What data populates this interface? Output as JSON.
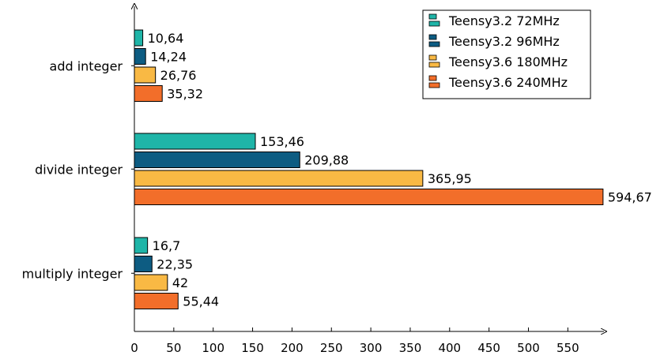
{
  "chart_data": {
    "type": "bar",
    "orientation": "horizontal",
    "categories": [
      "add integer",
      "divide integer",
      "multiply integer"
    ],
    "series": [
      {
        "name": "Teensy3.2 72MHz",
        "color": "#1fb5a8",
        "values": [
          10.64,
          153.46,
          16.7
        ],
        "labels": [
          "10,64",
          "153,46",
          "16,7"
        ]
      },
      {
        "name": "Teensy3.2 96MHz",
        "color": "#0d5c82",
        "values": [
          14.24,
          209.88,
          22.35
        ],
        "labels": [
          "14,24",
          "209,88",
          "22,35"
        ]
      },
      {
        "name": "Teensy3.6 180MHz",
        "color": "#f9b944",
        "values": [
          26.76,
          365.95,
          42
        ],
        "labels": [
          "26,76",
          "365,95",
          "42"
        ]
      },
      {
        "name": "Teensy3.6 240MHz",
        "color": "#f26e2a",
        "values": [
          35.32,
          594.67,
          55.44
        ],
        "labels": [
          "35,32",
          "594,67",
          "55,44"
        ]
      }
    ],
    "x_ticks": [
      0,
      50,
      100,
      150,
      200,
      250,
      300,
      350,
      400,
      450,
      500,
      550
    ],
    "xlim": [
      0,
      600
    ],
    "grid": false,
    "legend_position": "top-right"
  }
}
